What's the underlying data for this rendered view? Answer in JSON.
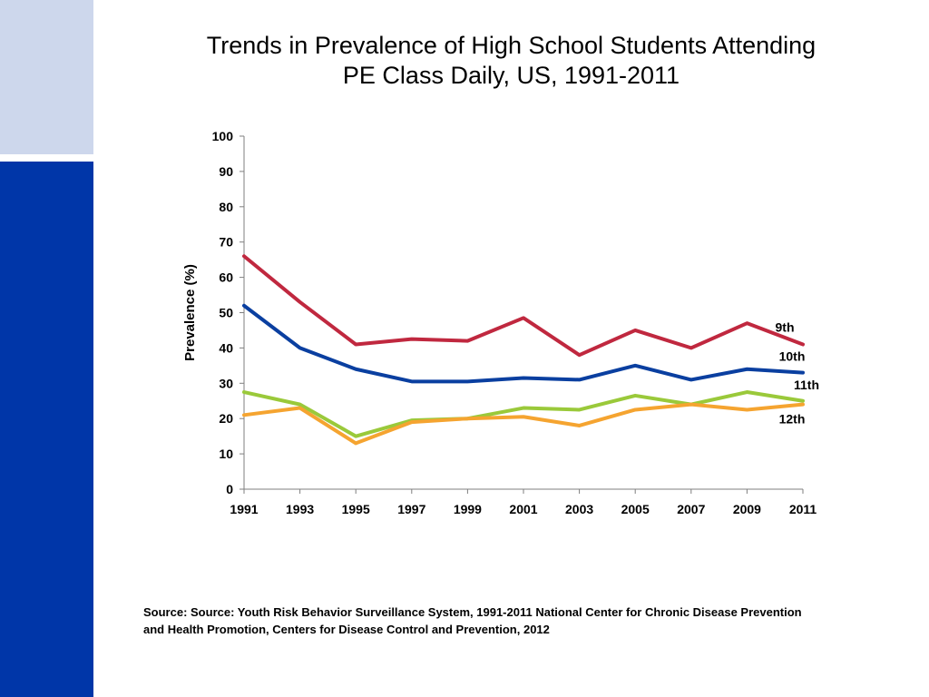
{
  "slide": {
    "title_line1": "Trends in Prevalence of High School Students Attending",
    "title_line2": "PE Class Daily, US, 1991-2011",
    "source_line1": "Source: Source: Youth Risk Behavior Surveillance System, 1991-2011 National Center for  Chronic Disease Prevention",
    "source_line2": "and Health Promotion, Centers for Disease Control and Prevention, 2012"
  },
  "chart_data": {
    "type": "line",
    "title": "Trends in Prevalence of High School Students Attending PE Class Daily, US, 1991-2011",
    "xlabel": "",
    "ylabel": "Prevalence (%)",
    "ylim": [
      0,
      100
    ],
    "yticks": [
      0,
      10,
      20,
      30,
      40,
      50,
      60,
      70,
      80,
      90,
      100
    ],
    "x": [
      "1991",
      "1993",
      "1995",
      "1997",
      "1999",
      "2001",
      "2003",
      "2005",
      "2007",
      "2009",
      "2011"
    ],
    "grid": false,
    "legend": "inline labels at right end of lines",
    "series": [
      {
        "name": "9th",
        "color": "#c0283f",
        "values": [
          66,
          53,
          41,
          42.5,
          42,
          48.5,
          38,
          45,
          40,
          47,
          41
        ]
      },
      {
        "name": "10th",
        "color": "#0a3fa0",
        "values": [
          52,
          40,
          34,
          30.5,
          30.5,
          31.5,
          31,
          35,
          31,
          34,
          33
        ]
      },
      {
        "name": "11th",
        "color": "#9ac93a",
        "values": [
          27.5,
          24,
          15,
          19.5,
          20,
          23,
          22.5,
          26.5,
          24,
          27.5,
          25
        ]
      },
      {
        "name": "12th",
        "color": "#f5a430",
        "values": [
          21,
          23,
          13,
          19,
          20,
          20.5,
          18,
          22.5,
          24,
          22.5,
          24
        ]
      }
    ]
  }
}
